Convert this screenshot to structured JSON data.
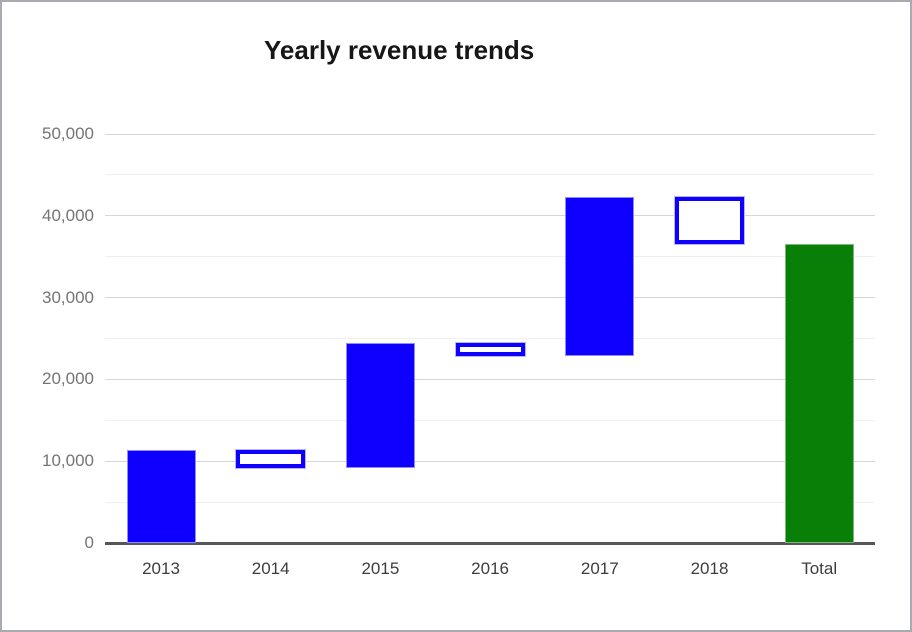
{
  "title": "Yearly revenue trends",
  "colors": {
    "increase_fill": "#0d00ff",
    "decrease_border": "#0d00ff",
    "decrease_fill": "#ffffff",
    "total_fill": "#088008",
    "major_grid": "#d6d6d6",
    "minor_grid": "#efefef",
    "baseline": "#565656",
    "y_label": "#757575",
    "x_label": "#3d3d3d",
    "title_color": "#161616",
    "frame_border": "#a9a9b0"
  },
  "chart_data": {
    "type": "bar",
    "subtype": "waterfall",
    "title": "Yearly revenue trends",
    "categories": [
      "2013",
      "2014",
      "2015",
      "2016",
      "2017",
      "2018",
      "Total"
    ],
    "segments": [
      {
        "label": "2013",
        "start": 0,
        "end": 11400,
        "kind": "increase"
      },
      {
        "label": "2014",
        "start": 11400,
        "end": 9200,
        "kind": "decrease"
      },
      {
        "label": "2015",
        "start": 9200,
        "end": 24500,
        "kind": "increase"
      },
      {
        "label": "2016",
        "start": 24500,
        "end": 22800,
        "kind": "decrease"
      },
      {
        "label": "2017",
        "start": 22800,
        "end": 42300,
        "kind": "increase"
      },
      {
        "label": "2018",
        "start": 42300,
        "end": 36500,
        "kind": "decrease"
      },
      {
        "label": "Total",
        "start": 0,
        "end": 36500,
        "kind": "total"
      }
    ],
    "y_axis": {
      "min": 0,
      "max": 50000,
      "major_step": 10000,
      "minor_step": 5000,
      "tick_labels": [
        "0",
        "10,000",
        "20,000",
        "30,000",
        "40,000",
        "50,000"
      ]
    },
    "xlabel": "",
    "ylabel": "",
    "grid": true,
    "legend": "none"
  }
}
